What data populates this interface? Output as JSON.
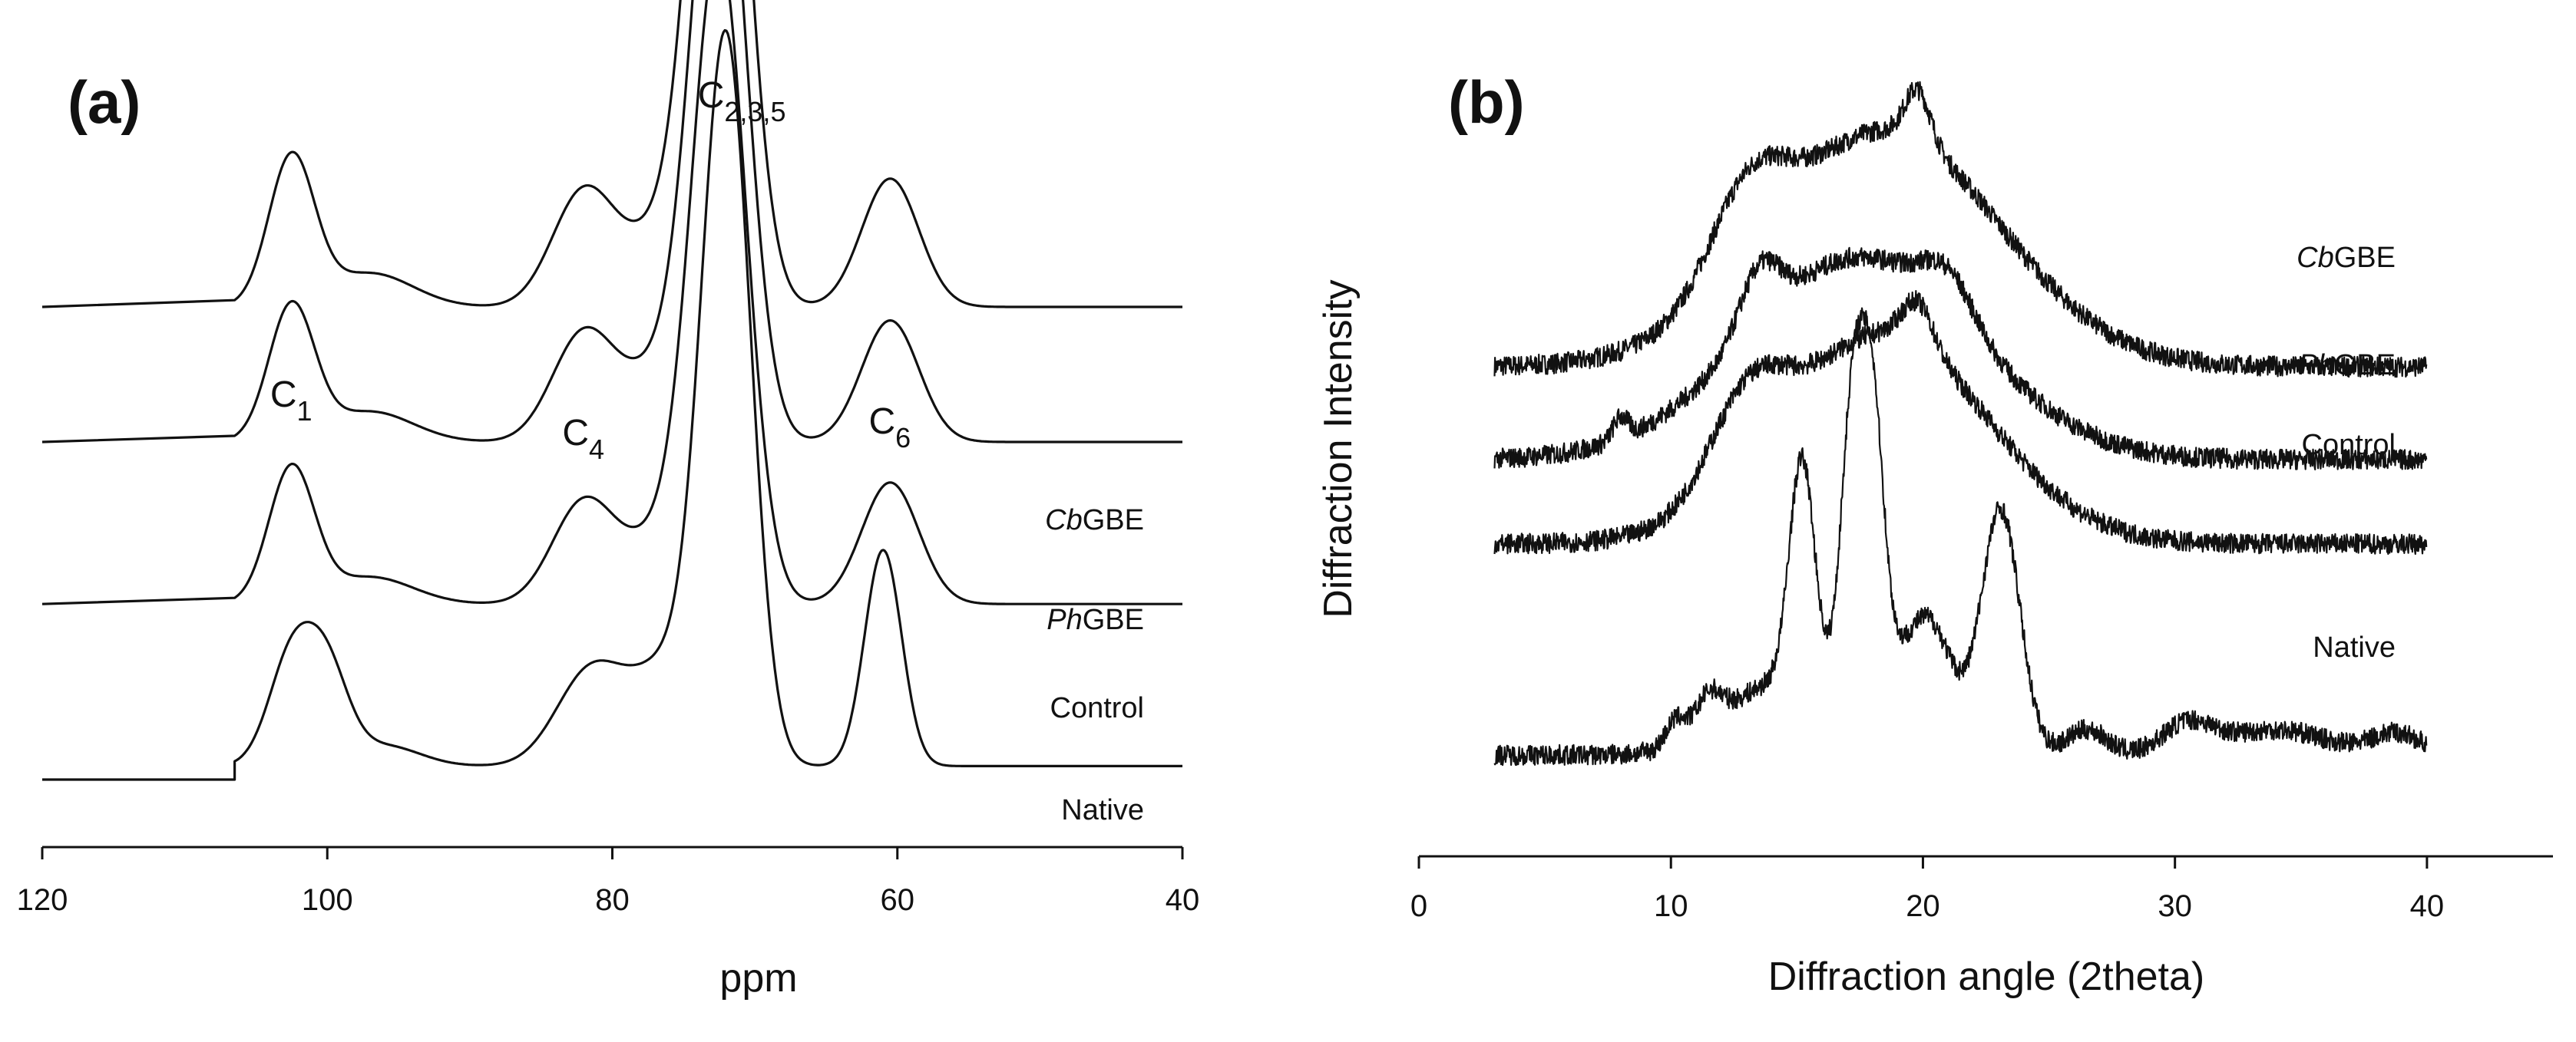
{
  "chart_data": [
    {
      "panel": "(a)",
      "type": "line",
      "title": "",
      "xlabel": "ppm",
      "ylabel": "",
      "xlim": [
        120,
        40
      ],
      "x_reversed": true,
      "xticks": [
        120,
        100,
        80,
        60,
        40
      ],
      "xtick_labels": [
        "120",
        "100",
        "80",
        "60",
        "40"
      ],
      "x_range_plotted": [
        106.5,
        40
      ],
      "peaks": [
        {
          "base": "C",
          "sub": "1",
          "ppm": 102.5
        },
        {
          "base": "C",
          "sub": "4",
          "ppm": 82
        },
        {
          "base": "C",
          "sub": "2,3,5",
          "ppm": 72.5
        },
        {
          "base": "C",
          "sub": "6",
          "ppm": 60.5
        }
      ],
      "series": [
        {
          "name": "CbGBE",
          "italic": "Cb",
          "plain": "GBE",
          "offset": 0.8,
          "components": [
            {
              "center": 102.5,
              "height": 0.22,
              "width": 1.6
            },
            {
              "center": 97,
              "height": 0.05,
              "width": 3
            },
            {
              "center": 82,
              "height": 0.17,
              "width": 2.2
            },
            {
              "center": 76.5,
              "height": 0.1,
              "width": 2.5
            },
            {
              "center": 72.5,
              "height": 1.02,
              "width": 1.9
            },
            {
              "center": 60.5,
              "height": 0.19,
              "width": 2.0
            }
          ]
        },
        {
          "name": "PhGBE",
          "italic": "Ph",
          "plain": "GBE",
          "offset": 0.6,
          "components": [
            {
              "center": 102.5,
              "height": 0.2,
              "width": 1.6
            },
            {
              "center": 97,
              "height": 0.045,
              "width": 3
            },
            {
              "center": 82,
              "height": 0.16,
              "width": 2.2
            },
            {
              "center": 76.5,
              "height": 0.1,
              "width": 2.5
            },
            {
              "center": 72.5,
              "height": 0.95,
              "width": 1.9
            },
            {
              "center": 60.5,
              "height": 0.18,
              "width": 2.0
            }
          ]
        },
        {
          "name": "Control",
          "italic": "",
          "plain": "Control",
          "offset": 0.36,
          "components": [
            {
              "center": 102.5,
              "height": 0.2,
              "width": 1.6
            },
            {
              "center": 97,
              "height": 0.04,
              "width": 3
            },
            {
              "center": 82,
              "height": 0.15,
              "width": 2.2
            },
            {
              "center": 76.5,
              "height": 0.09,
              "width": 2.5
            },
            {
              "center": 72.5,
              "height": 0.95,
              "width": 1.9
            },
            {
              "center": 60.5,
              "height": 0.18,
              "width": 2.0
            }
          ]
        },
        {
          "name": "Native",
          "italic": "",
          "plain": "Native",
          "offset": 0.12,
          "components": [
            {
              "center": 102.5,
              "height": 0.16,
              "width": 1.6
            },
            {
              "center": 100,
              "height": 0.13,
              "width": 1.5
            },
            {
              "center": 96,
              "height": 0.03,
              "width": 2.5
            },
            {
              "center": 81.5,
              "height": 0.14,
              "width": 2.4
            },
            {
              "center": 76,
              "height": 0.14,
              "width": 2.5
            },
            {
              "center": 72,
              "height": 1.05,
              "width": 1.7
            },
            {
              "center": 61,
              "height": 0.32,
              "width": 1.3
            }
          ]
        }
      ]
    },
    {
      "panel": "(b)",
      "type": "line",
      "title": "",
      "xlabel": "Diffraction angle (2theta)",
      "ylabel": "Diffraction Intensity",
      "xlim": [
        0,
        45
      ],
      "xticks": [
        0,
        10,
        20,
        30,
        40
      ],
      "xtick_labels": [
        "0",
        "10",
        "20",
        "30",
        "40"
      ],
      "x_range_plotted": [
        3,
        40
      ],
      "noise_amplitude": 0.012,
      "series": [
        {
          "name": "CbGBE",
          "italic": "Cb",
          "plain": "GBE",
          "offset": 0.58,
          "components": [
            {
              "center": 13,
              "height": 0.1,
              "width": 1.5
            },
            {
              "center": 18.5,
              "height": 0.28,
              "width": 4.5
            },
            {
              "center": 19.8,
              "height": 0.06,
              "width": 0.5
            }
          ]
        },
        {
          "name": "PhGBE",
          "italic": "Ph",
          "plain": "GBE",
          "offset": 0.47,
          "components": [
            {
              "center": 8,
              "height": 0.025,
              "width": 0.3
            },
            {
              "center": 13.5,
              "height": 0.07,
              "width": 0.8
            },
            {
              "center": 17.5,
              "height": 0.24,
              "width": 4.5
            },
            {
              "center": 21,
              "height": 0.05,
              "width": 1
            }
          ]
        },
        {
          "name": "Control",
          "italic": "",
          "plain": "Control",
          "offset": 0.37,
          "components": [
            {
              "center": 13,
              "height": 0.1,
              "width": 1.5
            },
            {
              "center": 18.5,
              "height": 0.25,
              "width": 4
            },
            {
              "center": 19.8,
              "height": 0.05,
              "width": 0.6
            }
          ]
        },
        {
          "name": "Native",
          "italic": "",
          "plain": "Native",
          "offset": 0.12,
          "components": [
            {
              "center": 10.2,
              "height": 0.03,
              "width": 0.4
            },
            {
              "center": 11.5,
              "height": 0.04,
              "width": 0.5
            },
            {
              "center": 14,
              "height": 0.08,
              "width": 2
            },
            {
              "center": 15.2,
              "height": 0.27,
              "width": 0.5
            },
            {
              "center": 17.2,
              "height": 0.32,
              "width": 0.45
            },
            {
              "center": 18,
              "height": 0.31,
              "width": 0.45
            },
            {
              "center": 19,
              "height": 0.1,
              "width": 2
            },
            {
              "center": 20.3,
              "height": 0.08,
              "width": 0.8
            },
            {
              "center": 23.1,
              "height": 0.28,
              "width": 0.75
            },
            {
              "center": 26.5,
              "height": 0.03,
              "width": 0.8
            },
            {
              "center": 30.5,
              "height": 0.035,
              "width": 1
            },
            {
              "center": 34,
              "height": 0.03,
              "width": 2
            },
            {
              "center": 38.8,
              "height": 0.025,
              "width": 1
            }
          ]
        }
      ]
    }
  ]
}
